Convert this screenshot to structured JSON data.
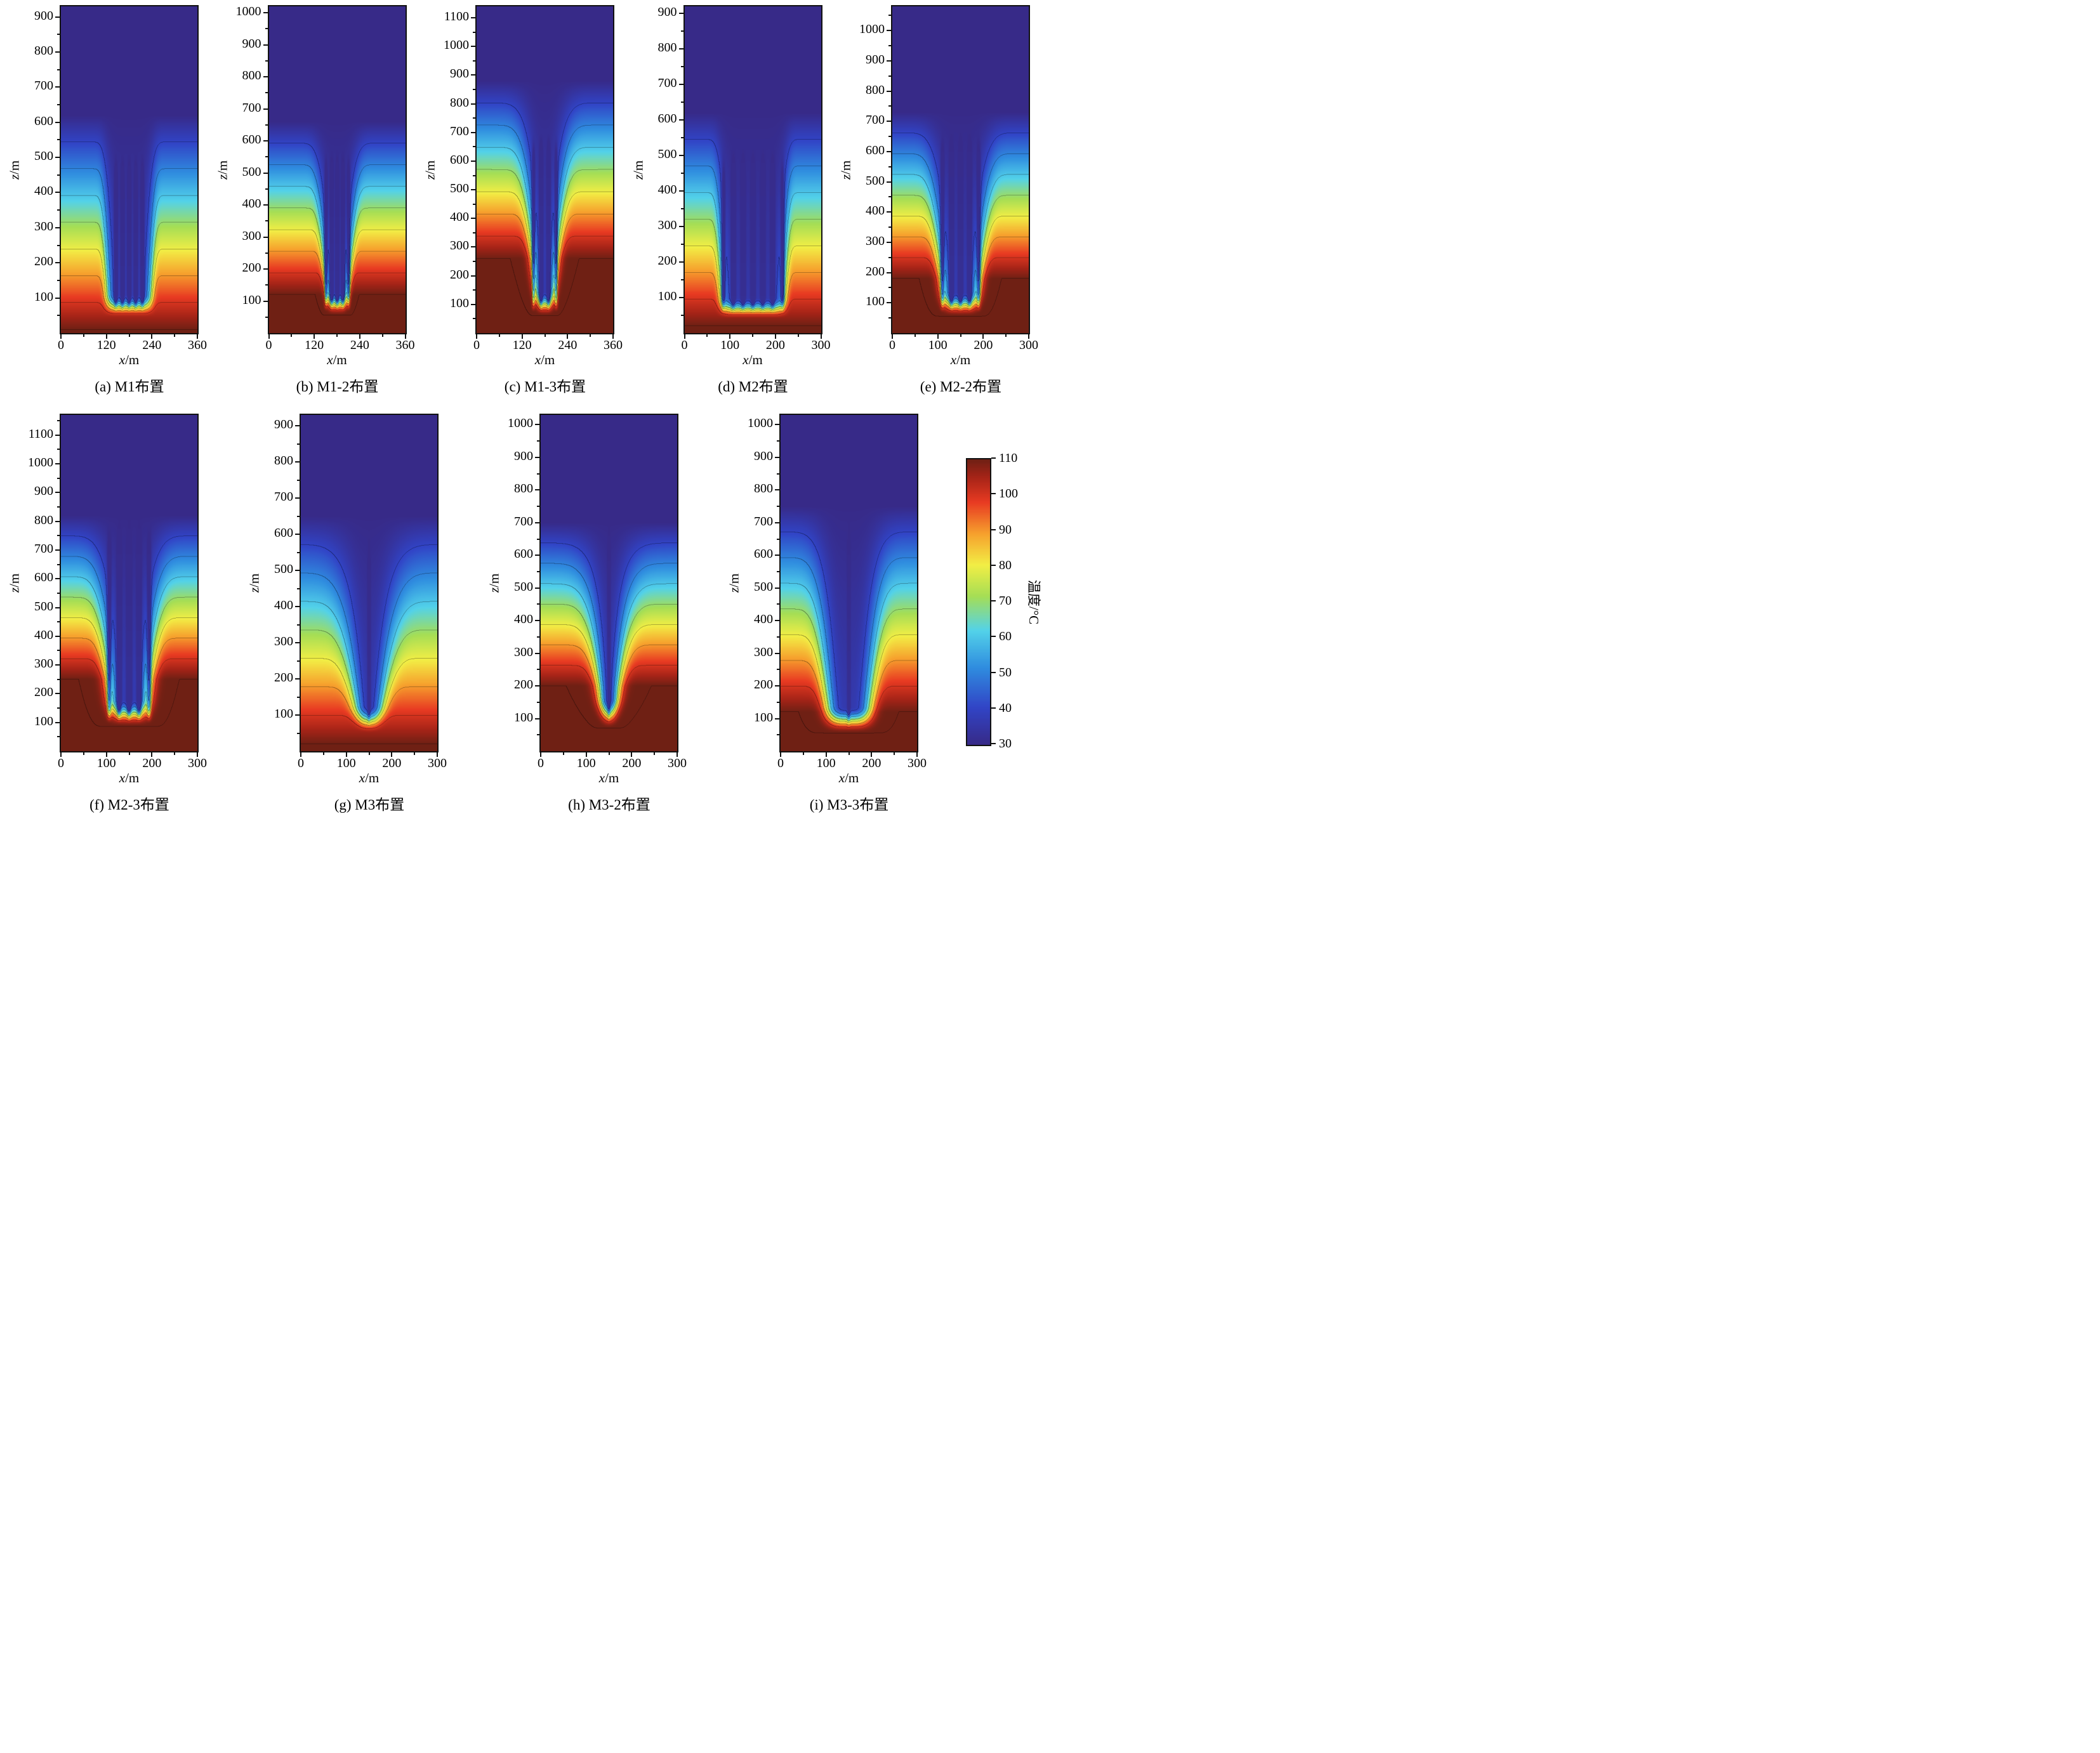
{
  "figure": {
    "background": "#ffffff",
    "contour_interval_c": 10,
    "colorbar": {
      "title": "温度/°C",
      "min": 30,
      "max": 110,
      "ticks": [
        110,
        100,
        90,
        80,
        70,
        60,
        50,
        40,
        30
      ]
    },
    "colormap_stops": [
      {
        "t": 0.0,
        "color": "#372a88"
      },
      {
        "t": 0.13,
        "color": "#3144c6"
      },
      {
        "t": 0.27,
        "color": "#2f8cdf"
      },
      {
        "t": 0.4,
        "color": "#53d2e9"
      },
      {
        "t": 0.52,
        "color": "#a5de55"
      },
      {
        "t": 0.63,
        "color": "#f2ee45"
      },
      {
        "t": 0.74,
        "color": "#f6a02d"
      },
      {
        "t": 0.85,
        "color": "#e83a22"
      },
      {
        "t": 0.94,
        "color": "#a42317"
      },
      {
        "t": 1.0,
        "color": "#6f2014"
      }
    ]
  },
  "chart_data": [
    {
      "id": "a",
      "row": 1,
      "type": "heatmap",
      "caption": "(a) M1布置",
      "xlabel": "x/m",
      "ylabel": "z/m",
      "xlim": [
        0,
        360
      ],
      "xticks": [
        0,
        120,
        240,
        360
      ],
      "ylim": [
        0,
        930
      ],
      "yticks": [
        100,
        200,
        300,
        400,
        500,
        600,
        700,
        800,
        900
      ],
      "temperature_range_c": [
        30,
        110
      ],
      "field": {
        "center": 180,
        "zCold": 620,
        "zHot": 10,
        "tip": 45,
        "rise": 65,
        "coreCooling": 0.9,
        "halfWidthBottom": 55,
        "halfWidthTop": 72,
        "widthPow": 0.5,
        "edgeSharpness": 6,
        "wells": [
          145,
          162.5,
          180,
          197.5,
          215
        ],
        "wellWidth": 4,
        "wellCooling": 0.45,
        "wellTop": 460
      }
    },
    {
      "id": "b",
      "row": 1,
      "type": "heatmap",
      "caption": "(b) M1-2布置",
      "xlabel": "x/m",
      "ylabel": "z/m",
      "xlim": [
        0,
        360
      ],
      "xticks": [
        0,
        120,
        240,
        360
      ],
      "ylim": [
        0,
        1020
      ],
      "yticks": [
        100,
        200,
        300,
        400,
        500,
        600,
        700,
        800,
        900,
        1000
      ],
      "temperature_range_c": [
        30,
        110
      ],
      "field": {
        "center": 180,
        "zCold": 660,
        "zHot": 120,
        "tip": 55,
        "rise": 75,
        "coreCooling": 0.9,
        "halfWidthBottom": 20,
        "halfWidthTop": 78,
        "widthPow": 0.7,
        "edgeSharpness": 4,
        "wells": [
          150,
          165,
          180,
          195,
          210
        ],
        "wellWidth": 4,
        "wellCooling": 0.45,
        "wellTop": 520
      }
    },
    {
      "id": "c",
      "row": 1,
      "type": "heatmap",
      "caption": "(c) M1-3布置",
      "xlabel": "x/m",
      "ylabel": "z/m",
      "xlim": [
        0,
        360
      ],
      "xticks": [
        0,
        120,
        240,
        360
      ],
      "ylim": [
        0,
        1140
      ],
      "yticks": [
        100,
        200,
        300,
        400,
        500,
        600,
        700,
        800,
        900,
        1000,
        1100
      ],
      "temperature_range_c": [
        30,
        110
      ],
      "field": {
        "center": 180,
        "zCold": 880,
        "zHot": 260,
        "tip": 60,
        "rise": 85,
        "coreCooling": 0.92,
        "halfWidthBottom": 16,
        "halfWidthTop": 85,
        "widthPow": 0.75,
        "edgeSharpness": 3,
        "wells": [
          150,
          170,
          190,
          210
        ],
        "wellWidth": 4,
        "wellCooling": 0.4,
        "wellTop": 640
      }
    },
    {
      "id": "d",
      "row": 1,
      "type": "heatmap",
      "caption": "(d) M2布置",
      "xlabel": "x/m",
      "ylabel": "z/m",
      "xlim": [
        0,
        300
      ],
      "xticks": [
        0,
        100,
        200,
        300
      ],
      "ylim": [
        0,
        920
      ],
      "yticks": [
        100,
        200,
        300,
        400,
        500,
        600,
        700,
        800,
        900
      ],
      "temperature_range_c": [
        30,
        110
      ],
      "field": {
        "center": 150,
        "zCold": 620,
        "zHot": 20,
        "tip": 40,
        "rise": 60,
        "coreCooling": 0.92,
        "halfWidthBottom": 66,
        "halfWidthTop": 82,
        "widthPow": 0.45,
        "edgeSharpness": 8,
        "wells": [
          85,
          106.7,
          128.3,
          150,
          171.7,
          193.3,
          215
        ],
        "wellWidth": 4,
        "wellCooling": 0.45,
        "wellTop": 470
      }
    },
    {
      "id": "e",
      "row": 1,
      "type": "heatmap",
      "caption": "(e) M2-2布置",
      "xlabel": "x/m",
      "ylabel": "z/m",
      "xlim": [
        0,
        300
      ],
      "xticks": [
        0,
        100,
        200,
        300
      ],
      "ylim": [
        0,
        1080
      ],
      "yticks": [
        100,
        200,
        300,
        400,
        500,
        600,
        700,
        800,
        900,
        1000
      ],
      "temperature_range_c": [
        30,
        110
      ],
      "field": {
        "center": 150,
        "zCold": 730,
        "zHot": 180,
        "tip": 55,
        "rise": 80,
        "coreCooling": 0.92,
        "halfWidthBottom": 30,
        "halfWidthTop": 88,
        "widthPow": 0.65,
        "edgeSharpness": 4,
        "wells": [
          110,
          130,
          150,
          170,
          190
        ],
        "wellWidth": 4,
        "wellCooling": 0.4,
        "wellTop": 620
      }
    },
    {
      "id": "f",
      "row": 2,
      "type": "heatmap",
      "caption": "(f) M2-3布置",
      "xlabel": "x/m",
      "ylabel": "z/m",
      "xlim": [
        0,
        300
      ],
      "xticks": [
        0,
        100,
        200,
        300
      ],
      "ylim": [
        0,
        1170
      ],
      "yticks": [
        100,
        200,
        300,
        400,
        500,
        600,
        700,
        800,
        900,
        1000,
        1100
      ],
      "temperature_range_c": [
        30,
        110
      ],
      "field": {
        "center": 150,
        "zCold": 820,
        "zHot": 250,
        "tip": 85,
        "rise": 95,
        "coreCooling": 0.92,
        "halfWidthBottom": 34,
        "halfWidthTop": 92,
        "widthPow": 0.7,
        "edgeSharpness": 3.5,
        "wells": [
          106,
          128,
          150,
          172,
          194
        ],
        "wellWidth": 4.5,
        "wellCooling": 0.4,
        "wellTop": 760
      }
    },
    {
      "id": "g",
      "row": 2,
      "type": "heatmap",
      "caption": "(g) M3布置",
      "xlabel": "x/m",
      "ylabel": "z/m",
      "xlim": [
        0,
        300
      ],
      "xticks": [
        0,
        100,
        200,
        300
      ],
      "ylim": [
        0,
        930
      ],
      "yticks": [
        100,
        200,
        300,
        400,
        500,
        600,
        700,
        800,
        900
      ],
      "temperature_range_c": [
        30,
        110
      ],
      "field": {
        "center": 150,
        "zCold": 650,
        "zHot": 20,
        "tip": 50,
        "rise": 75,
        "coreCooling": 0.9,
        "halfWidthBottom": 14,
        "halfWidthTop": 95,
        "widthPow": 0.6,
        "edgeSharpness": 2.5,
        "wells": [
          150
        ],
        "wellWidth": 3,
        "wellCooling": 0.25,
        "wellTop": 560
      }
    },
    {
      "id": "h",
      "row": 2,
      "type": "heatmap",
      "caption": "(h) M3-2布置",
      "xlabel": "x/m",
      "ylabel": "z/m",
      "xlim": [
        0,
        300
      ],
      "xticks": [
        0,
        100,
        200,
        300
      ],
      "ylim": [
        0,
        1030
      ],
      "yticks": [
        100,
        200,
        300,
        400,
        500,
        600,
        700,
        800,
        900,
        1000
      ],
      "temperature_range_c": [
        30,
        110
      ],
      "field": {
        "center": 150,
        "zCold": 700,
        "zHot": 200,
        "tip": 70,
        "rise": 90,
        "coreCooling": 0.9,
        "halfWidthBottom": 10,
        "halfWidthTop": 82,
        "widthPow": 0.75,
        "edgeSharpness": 2.2,
        "wells": [
          150
        ],
        "wellWidth": 3,
        "wellCooling": 0.25,
        "wellTop": 660
      }
    },
    {
      "id": "i",
      "row": 2,
      "type": "heatmap",
      "caption": "(i) M3-3布置",
      "xlabel": "x/m",
      "ylabel": "z/m",
      "xlim": [
        0,
        300
      ],
      "xticks": [
        0,
        100,
        200,
        300
      ],
      "ylim": [
        0,
        1030
      ],
      "yticks": [
        100,
        200,
        300,
        400,
        500,
        600,
        700,
        800,
        900,
        1000
      ],
      "temperature_range_c": [
        30,
        110
      ],
      "field": {
        "center": 150,
        "zCold": 750,
        "zHot": 120,
        "tip": 55,
        "rise": 80,
        "coreCooling": 0.92,
        "halfWidthBottom": 38,
        "halfWidthTop": 88,
        "widthPow": 0.55,
        "edgeSharpness": 3.5,
        "wells": [
          150
        ],
        "wellWidth": 3,
        "wellCooling": 0.2,
        "wellTop": 660
      }
    }
  ]
}
